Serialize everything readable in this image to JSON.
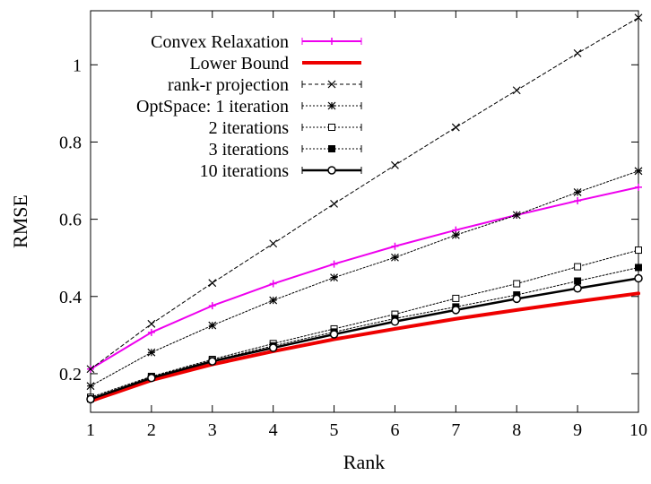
{
  "chart_data": {
    "type": "line",
    "title": "",
    "xlabel": "Rank",
    "ylabel": "RMSE",
    "xlim": [
      1,
      10
    ],
    "ylim": [
      0.1,
      1.14
    ],
    "x_ticks": [
      "1",
      "2",
      "3",
      "4",
      "5",
      "6",
      "7",
      "8",
      "9",
      "10"
    ],
    "y_ticks": [
      "0.2",
      "0.4",
      "0.6",
      "0.8",
      "1"
    ],
    "grid": false,
    "legend_position": "top-left",
    "x": [
      1,
      2,
      3,
      4,
      5,
      6,
      7,
      8,
      9,
      10
    ],
    "series": [
      {
        "name": "Convex Relaxation",
        "color": "#ee00ee",
        "marker": "plus",
        "dash": "solid",
        "width": 2,
        "values": [
          0.212,
          0.307,
          0.376,
          0.433,
          0.484,
          0.53,
          0.572,
          0.611,
          0.648,
          0.683
        ]
      },
      {
        "name": "Lower Bound",
        "color": "#ee0000",
        "marker": "none",
        "dash": "solid",
        "width": 4,
        "values": [
          0.129,
          0.183,
          0.224,
          0.258,
          0.289,
          0.316,
          0.342,
          0.365,
          0.387,
          0.408
        ]
      },
      {
        "name": "rank-r projection",
        "color": "#000000",
        "marker": "x",
        "dash": "dashed",
        "width": 1,
        "values": [
          0.212,
          0.329,
          0.435,
          0.537,
          0.64,
          0.74,
          0.838,
          0.934,
          1.03,
          1.122
        ]
      },
      {
        "name": "OptSpace: 1 iteration",
        "color": "#000000",
        "marker": "star",
        "dash": "dotted",
        "width": 1,
        "values": [
          0.168,
          0.255,
          0.325,
          0.39,
          0.449,
          0.501,
          0.559,
          0.611,
          0.67,
          0.725
        ]
      },
      {
        "name": "2 iterations",
        "color": "#000000",
        "marker": "open-square",
        "dash": "dotted",
        "width": 1,
        "values": [
          0.139,
          0.193,
          0.237,
          0.278,
          0.316,
          0.354,
          0.395,
          0.433,
          0.477,
          0.52
        ]
      },
      {
        "name": "3 iterations",
        "color": "#000000",
        "marker": "filled-square",
        "dash": "dotted",
        "width": 1,
        "values": [
          0.135,
          0.191,
          0.234,
          0.272,
          0.308,
          0.343,
          0.373,
          0.404,
          0.44,
          0.475
        ]
      },
      {
        "name": "10 iterations",
        "color": "#000000",
        "marker": "open-circle",
        "dash": "solid",
        "width": 2.5,
        "values": [
          0.134,
          0.189,
          0.232,
          0.267,
          0.302,
          0.335,
          0.365,
          0.394,
          0.421,
          0.447
        ]
      }
    ]
  }
}
